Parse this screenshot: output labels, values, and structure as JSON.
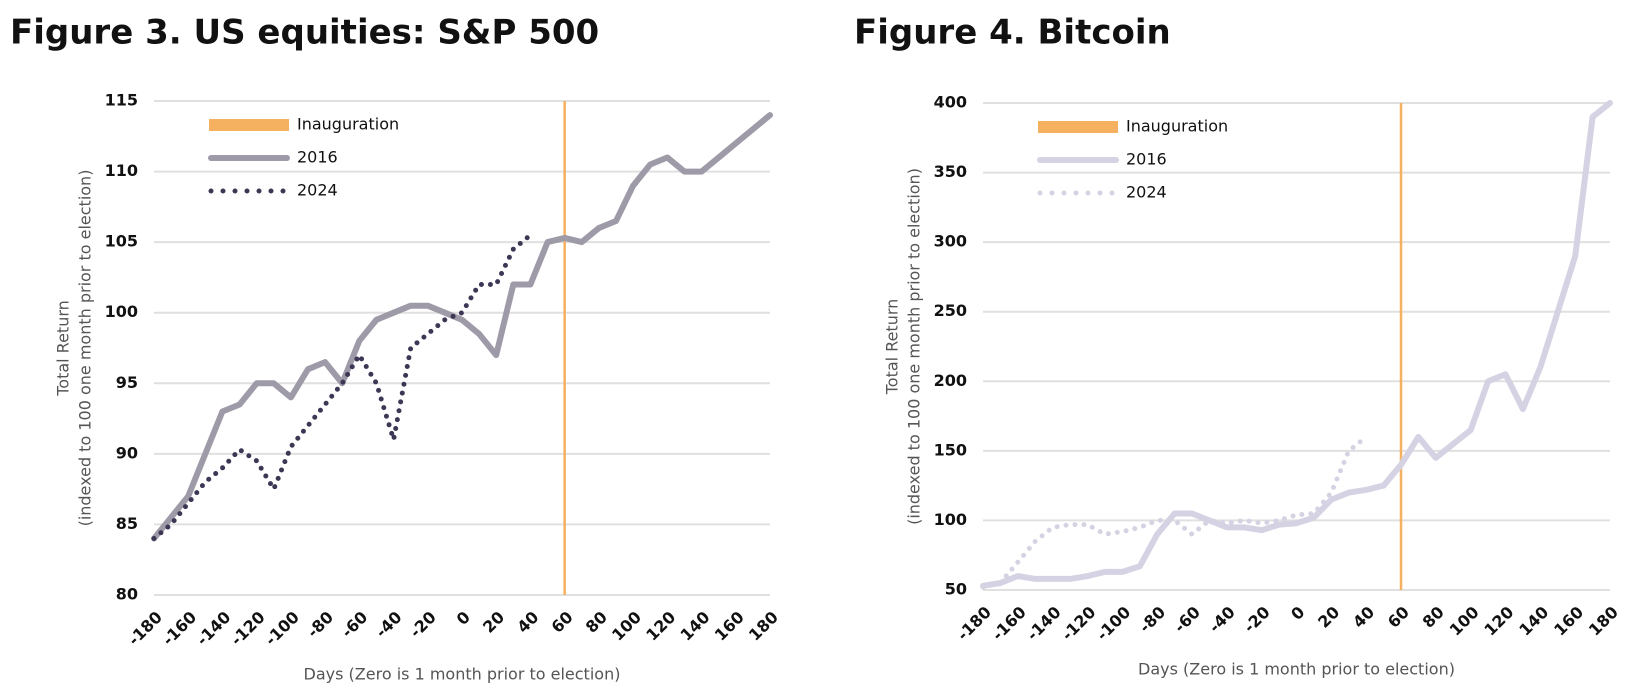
{
  "chart_data": [
    {
      "type": "line",
      "title": "Figure 3. US equities: S&P 500",
      "xlabel": "Days (Zero is 1 month prior to election)",
      "ylabel": [
        "Total Return",
        "(indexed to 100 one month prior to election)"
      ],
      "x": [
        -180,
        -170,
        -160,
        -150,
        -140,
        -130,
        -120,
        -110,
        -100,
        -90,
        -80,
        -70,
        -60,
        -50,
        -40,
        -30,
        -20,
        -10,
        0,
        10,
        20,
        30,
        40,
        50,
        60,
        70,
        80,
        90,
        100,
        110,
        120,
        130,
        140,
        150,
        160,
        170,
        180
      ],
      "series": [
        {
          "name": "2016",
          "color": "#9e9aa8",
          "style": "solid",
          "values": [
            84,
            85.5,
            87,
            90,
            93,
            93.5,
            95,
            95,
            94,
            96,
            96.5,
            95,
            98,
            99.5,
            100,
            100.5,
            100.5,
            100,
            99.5,
            98.5,
            97,
            102,
            102,
            105,
            105.3,
            105,
            106,
            106.5,
            109,
            110.5,
            111,
            110,
            110,
            111,
            112,
            113,
            114
          ]
        },
        {
          "name": "2024",
          "color": "#3d3654",
          "style": "dotted",
          "values": [
            84,
            85,
            86.5,
            88,
            89,
            90.3,
            89.5,
            87.5,
            90.5,
            92,
            93.5,
            95,
            97,
            95,
            91,
            97.5,
            98.5,
            99.5,
            100,
            102,
            102,
            104.5,
            105.5,
            null,
            null,
            null,
            null,
            null,
            null,
            null,
            null,
            null,
            null,
            null,
            null,
            null,
            null
          ]
        }
      ],
      "vlines": [
        {
          "name": "Inauguration",
          "x": 60,
          "color": "#f5b060"
        }
      ],
      "xlim": [
        -180,
        180
      ],
      "xticks": [
        -180,
        -160,
        -140,
        -120,
        -100,
        -80,
        -60,
        -40,
        -20,
        0,
        20,
        40,
        60,
        80,
        100,
        120,
        140,
        160,
        180
      ],
      "ylim": [
        80,
        115
      ],
      "yticks": [
        80,
        85,
        90,
        95,
        100,
        105,
        110,
        115
      ],
      "grid": true,
      "legend": "upper left"
    },
    {
      "type": "line",
      "title": "Figure 4. Bitcoin",
      "xlabel": "Days (Zero is 1 month prior to election)",
      "ylabel": [
        "Total Return",
        "(indexed to 100 one month prior to election)"
      ],
      "x": [
        -180,
        -170,
        -160,
        -150,
        -140,
        -130,
        -120,
        -110,
        -100,
        -90,
        -80,
        -70,
        -60,
        -50,
        -40,
        -30,
        -20,
        -10,
        0,
        10,
        20,
        30,
        40,
        50,
        60,
        70,
        80,
        90,
        100,
        110,
        120,
        130,
        140,
        150,
        160,
        170,
        180
      ],
      "series": [
        {
          "name": "2016",
          "color": "#d5d3e3",
          "style": "solid",
          "values": [
            53,
            55,
            60,
            58,
            58,
            58,
            60,
            63,
            63,
            67,
            90,
            105,
            105,
            100,
            95,
            95,
            93,
            97,
            98,
            102,
            115,
            120,
            122,
            125,
            140,
            160,
            145,
            155,
            165,
            200,
            205,
            180,
            210,
            250,
            290,
            390,
            400
          ]
        },
        {
          "name": "2024",
          "color": "#d5d3e3",
          "style": "dotted",
          "values": [
            52,
            55,
            70,
            85,
            95,
            97,
            97,
            90,
            92,
            95,
            100,
            100,
            90,
            100,
            98,
            100,
            98,
            100,
            104,
            105,
            120,
            150,
            160,
            null,
            null,
            null,
            null,
            null,
            null,
            null,
            null,
            null,
            null,
            null,
            null,
            null,
            null
          ]
        }
      ],
      "vlines": [
        {
          "name": "Inauguration",
          "x": 60,
          "color": "#f5b060"
        }
      ],
      "xlim": [
        -180,
        180
      ],
      "xticks": [
        -180,
        -160,
        -140,
        -120,
        -100,
        -80,
        -60,
        -40,
        -20,
        0,
        20,
        40,
        60,
        80,
        100,
        120,
        140,
        160,
        180
      ],
      "ylim": [
        50,
        400
      ],
      "yticks": [
        50,
        100,
        150,
        200,
        250,
        300,
        350,
        400
      ],
      "grid": true,
      "legend": "upper left"
    }
  ]
}
